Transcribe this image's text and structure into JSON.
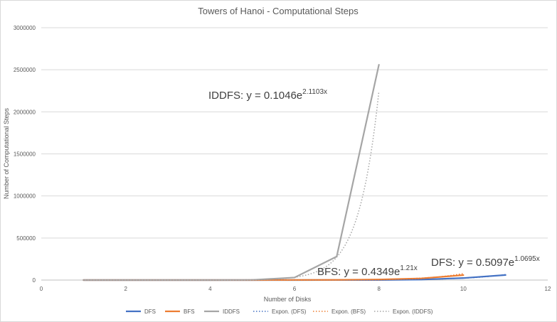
{
  "chart_data": {
    "type": "line",
    "title": "Towers of Hanoi - Computational Steps",
    "xlabel": "Number of Disks",
    "ylabel": "Number of Computational Steps",
    "xlim": [
      0,
      12
    ],
    "ylim": [
      0,
      3000000
    ],
    "x_ticks": [
      "0",
      "2",
      "4",
      "6",
      "8",
      "10",
      "12"
    ],
    "y_ticks": [
      "0",
      "500000",
      "1000000",
      "1500000",
      "2000000",
      "2500000",
      "3000000"
    ],
    "grid": true,
    "legend_position": "bottom",
    "series": [
      {
        "name": "DFS",
        "color": "#4472C4",
        "style": "solid",
        "x": [
          1,
          2,
          3,
          4,
          5,
          6,
          7,
          8,
          9,
          10,
          11
        ],
        "y": [
          1,
          3,
          7,
          15,
          31,
          63,
          300,
          1200,
          6000,
          24000,
          60000
        ]
      },
      {
        "name": "BFS",
        "color": "#ED7D31",
        "style": "solid",
        "x": [
          1,
          2,
          3,
          4,
          5,
          6,
          7,
          8,
          9,
          10
        ],
        "y": [
          2,
          8,
          26,
          80,
          242,
          728,
          2186,
          6560,
          19682,
          59048
        ]
      },
      {
        "name": "IDDFS",
        "color": "#A5A5A5",
        "style": "solid",
        "x": [
          1,
          2,
          3,
          4,
          5,
          6,
          7,
          8
        ],
        "y": [
          1,
          5,
          30,
          200,
          1500,
          30000,
          280000,
          2560000
        ]
      },
      {
        "name": "Expon. (DFS)",
        "color": "#4472C4",
        "style": "dotted",
        "trend": "expon",
        "a": 0.5097,
        "b": 1.0695,
        "x_range": [
          1,
          11
        ]
      },
      {
        "name": "Expon. (BFS)",
        "color": "#ED7D31",
        "style": "dotted",
        "trend": "expon",
        "a": 0.4349,
        "b": 1.21,
        "x_range": [
          1,
          10
        ]
      },
      {
        "name": "Expon. (IDDFS)",
        "color": "#A5A5A5",
        "style": "dotted",
        "trend": "expon",
        "a": 0.1046,
        "b": 2.1103,
        "x_range": [
          1,
          8
        ]
      }
    ],
    "annotations": [
      {
        "base": "IDDFS: y = 0.1046e",
        "exp": "2.1103x"
      },
      {
        "base": "BFS: y = 0.4349e",
        "exp": "1.21x"
      },
      {
        "base": "DFS: y = 0.5097e",
        "exp": "1.0695x"
      }
    ]
  }
}
